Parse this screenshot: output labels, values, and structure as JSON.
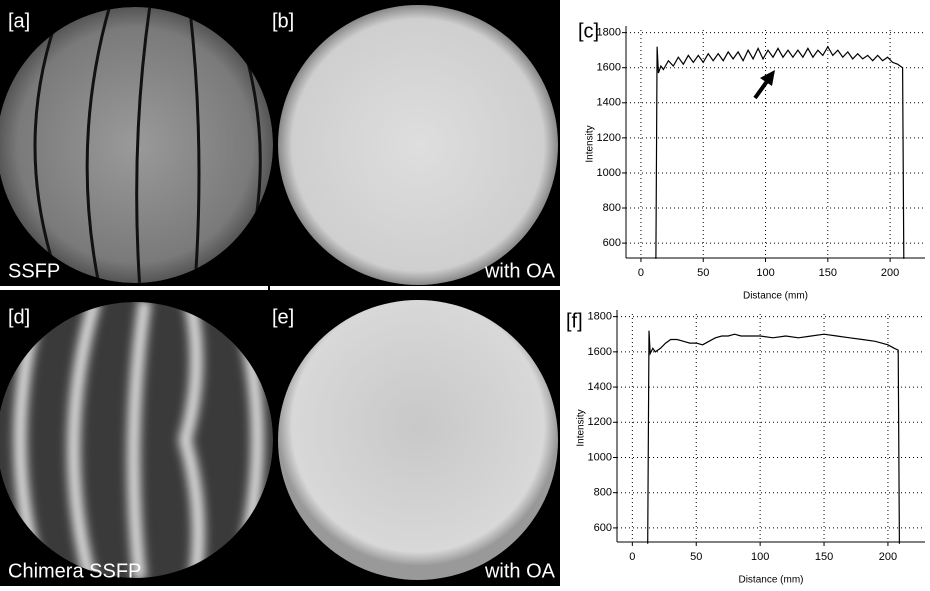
{
  "panels": [
    {
      "label": "[a]",
      "caption": "SSFP"
    },
    {
      "label": "[b]",
      "caption": "with OA"
    },
    {
      "label": "[d]",
      "caption": "Chimera SSFP"
    },
    {
      "label": "[e]",
      "caption": "with OA"
    }
  ],
  "chart_data": [
    {
      "type": "line",
      "label": "[c]",
      "xlabel": "Distance (mm)",
      "ylabel": "Intensity",
      "x": [
        12,
        13,
        14,
        16,
        18,
        22,
        26,
        30,
        34,
        38,
        42,
        46,
        50,
        54,
        58,
        62,
        66,
        70,
        74,
        78,
        82,
        86,
        90,
        94,
        98,
        102,
        106,
        110,
        114,
        118,
        122,
        126,
        130,
        134,
        138,
        142,
        146,
        150,
        154,
        158,
        162,
        166,
        170,
        174,
        178,
        182,
        186,
        190,
        194,
        198,
        202,
        206,
        208,
        210,
        211
      ],
      "series": [
        {
          "color": "#000000",
          "values": [
            510,
            1720,
            1570,
            1610,
            1590,
            1640,
            1610,
            1660,
            1620,
            1670,
            1630,
            1670,
            1630,
            1680,
            1640,
            1680,
            1640,
            1690,
            1650,
            1690,
            1640,
            1700,
            1650,
            1710,
            1650,
            1700,
            1660,
            1710,
            1660,
            1700,
            1660,
            1700,
            1660,
            1710,
            1660,
            1700,
            1670,
            1720,
            1670,
            1700,
            1660,
            1690,
            1650,
            1680,
            1650,
            1670,
            1640,
            1670,
            1640,
            1660,
            1630,
            1620,
            1610,
            1600,
            510
          ]
        }
      ],
      "xlim": [
        -12,
        228
      ],
      "ylim": [
        515,
        1815
      ],
      "xticks": [
        0,
        50,
        100,
        150,
        200
      ],
      "yticks": [
        600,
        800,
        1000,
        1200,
        1400,
        1600,
        1800
      ],
      "grid": true
    },
    {
      "type": "line",
      "label": "[f]",
      "xlabel": "Distance (mm)",
      "ylabel": "Intensity",
      "x": [
        12,
        13,
        14,
        16,
        18,
        22,
        26,
        30,
        35,
        40,
        45,
        50,
        55,
        60,
        65,
        70,
        75,
        80,
        85,
        90,
        100,
        110,
        120,
        130,
        140,
        150,
        160,
        170,
        180,
        190,
        200,
        205,
        208,
        209
      ],
      "series": [
        {
          "color": "#000000",
          "values": [
            510,
            1720,
            1590,
            1620,
            1600,
            1620,
            1650,
            1670,
            1670,
            1660,
            1650,
            1650,
            1640,
            1660,
            1680,
            1690,
            1690,
            1700,
            1690,
            1690,
            1690,
            1680,
            1690,
            1680,
            1690,
            1700,
            1690,
            1680,
            1670,
            1660,
            1640,
            1620,
            1610,
            510
          ]
        }
      ],
      "xlim": [
        -12,
        229
      ],
      "ylim": [
        520,
        1815
      ],
      "xticks": [
        0,
        50,
        100,
        150,
        200
      ],
      "yticks": [
        600,
        800,
        1000,
        1200,
        1400,
        1600,
        1800
      ],
      "grid": true
    }
  ]
}
